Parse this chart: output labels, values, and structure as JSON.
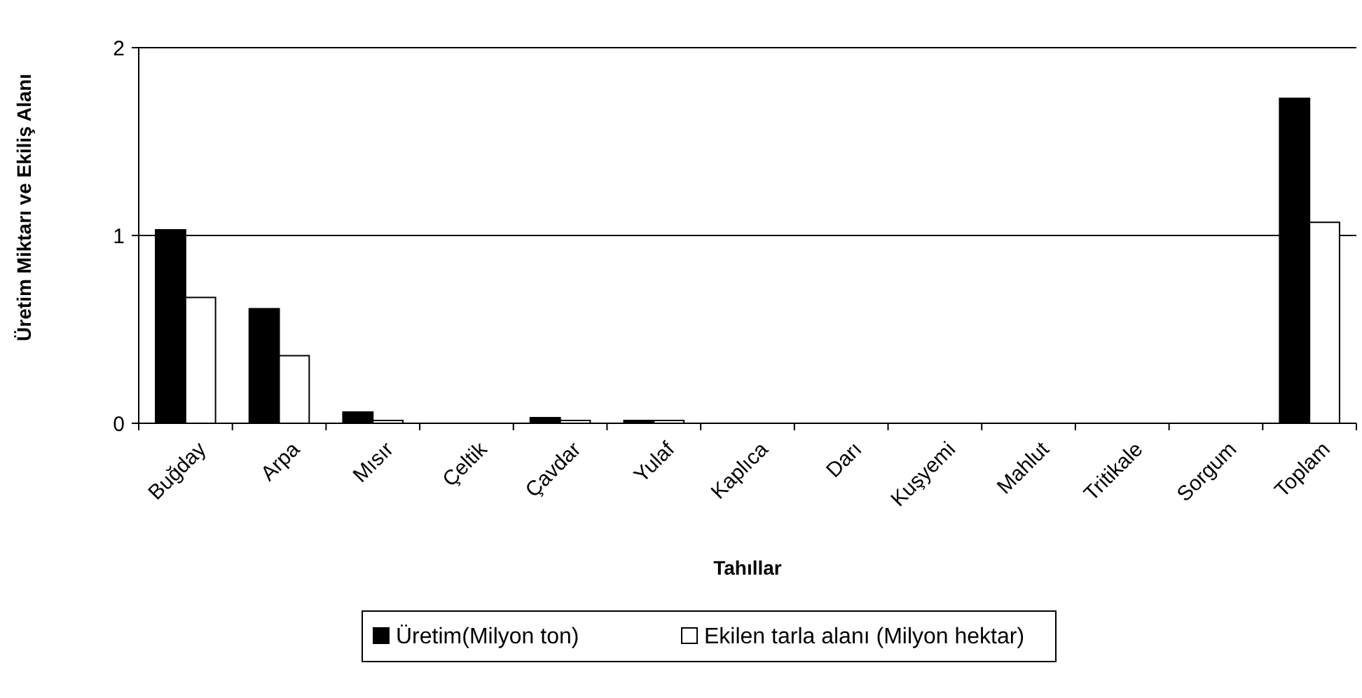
{
  "chart_data": {
    "type": "bar",
    "xlabel": "Tahıllar",
    "ylabel": "Üretim Miktarı ve Ekiliş Alanı",
    "categories": [
      "Buğday",
      "Arpa",
      "Mısır",
      "Çeltik",
      "Çavdar",
      "Yulaf",
      "Kaplıca",
      "Darı",
      "Kuşyemi",
      "Mahlut",
      "Tritikale",
      "Sorgum",
      "Toplam"
    ],
    "series": [
      {
        "name": "Üretim(Milyon ton)",
        "color": "#000000",
        "values": [
          1.03,
          0.61,
          0.06,
          0,
          0.03,
          0.015,
          0,
          0,
          0,
          0,
          0,
          0,
          1.73
        ]
      },
      {
        "name": "Ekilen tarla alanı (Milyon hektar)",
        "color": "#ffffff",
        "values": [
          0.67,
          0.36,
          0.015,
          0,
          0.015,
          0.015,
          0,
          0,
          0,
          0,
          0,
          0,
          1.07
        ]
      }
    ],
    "ylim": [
      0,
      2
    ],
    "yticks": [
      0,
      1,
      2
    ],
    "grid": "y",
    "legend": "bottom"
  }
}
